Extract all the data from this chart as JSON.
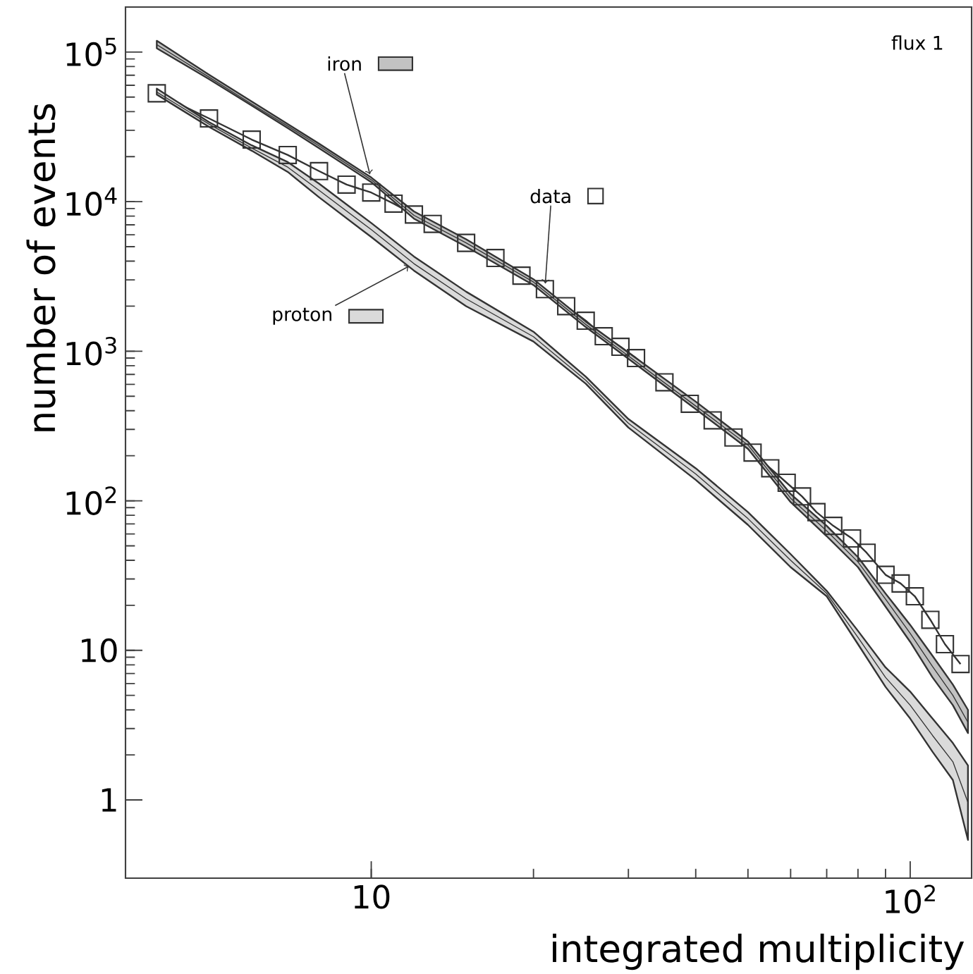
{
  "chart_data": {
    "type": "line",
    "xlabel": "integrated multiplicity",
    "ylabel": "number of events",
    "log": "xy",
    "xlim": [
      3.5,
      130
    ],
    "ylim": [
      0.3,
      200000
    ],
    "xticks": [
      10,
      {
        "value": 100,
        "label": "10$^{2}$"
      }
    ],
    "yticks": [
      1,
      10,
      {
        "value": 100,
        "label": "10$^{2}$"
      },
      {
        "value": 1000,
        "label": "10$^{3}$"
      },
      {
        "value": 10000,
        "label": "10$^{4}$"
      },
      {
        "value": 100000,
        "label": "10$^{5}$"
      }
    ],
    "x": [
      4,
      5,
      6,
      7,
      8,
      10,
      12,
      15,
      20,
      25,
      30,
      40,
      50,
      60,
      70,
      80,
      90,
      100,
      110,
      120,
      128
    ],
    "series": [
      {
        "name": "data",
        "color": "#333333",
        "marker": "square",
        "x": [
          4,
          5,
          6,
          7,
          8,
          9,
          10,
          11,
          12,
          13,
          15,
          17,
          19,
          21,
          23,
          25,
          27,
          29,
          31,
          35,
          39,
          43,
          47,
          51,
          55,
          59,
          63,
          67,
          72,
          78,
          83,
          90,
          96,
          102,
          109,
          116,
          124
        ],
        "values": [
          53000,
          36000,
          26000,
          20500,
          16000,
          13000,
          11500,
          9700,
          8200,
          7100,
          5300,
          4200,
          3200,
          2600,
          2000,
          1600,
          1260,
          1070,
          900,
          620,
          445,
          345,
          265,
          210,
          165,
          132,
          107,
          84,
          68,
          56,
          45,
          32,
          28,
          23,
          16,
          11,
          8.1
        ]
      },
      {
        "name": "iron",
        "color": "#333333",
        "marker": "none",
        "values": [
          112000,
          68000,
          45000,
          32000,
          23600,
          14000,
          8100,
          5300,
          2900,
          1510,
          930,
          430,
          236,
          104,
          63,
          39,
          22,
          13,
          7.8,
          5.0,
          3.3
        ],
        "lower": [
          106000,
          66000,
          43900,
          31000,
          22800,
          13500,
          7700,
          5000,
          2770,
          1450,
          890,
          410,
          223,
          98,
          58,
          36,
          19.6,
          11.4,
          6.6,
          4.3,
          2.8
        ],
        "upper": [
          119000,
          70600,
          46700,
          33000,
          24400,
          14500,
          8600,
          5600,
          3030,
          1580,
          980,
          460,
          249,
          111,
          68,
          42,
          24,
          14.8,
          9.2,
          5.9,
          4.0
        ]
      },
      {
        "name": "proton",
        "color": "#333333",
        "marker": "none",
        "values": [
          54000,
          33000,
          22800,
          17000,
          11900,
          6500,
          3850,
          2240,
          1250,
          640,
          330,
          151,
          76,
          40,
          24,
          12.2,
          6.6,
          4.3,
          2.7,
          1.8,
          0.96
        ],
        "lower": [
          52000,
          31600,
          21900,
          15800,
          10700,
          5800,
          3460,
          2000,
          1160,
          607,
          309,
          138,
          69,
          36,
          23,
          11,
          5.7,
          3.5,
          2.1,
          1.36,
          0.54
        ],
        "upper": [
          57000,
          34000,
          23800,
          18400,
          13200,
          7200,
          4300,
          2500,
          1350,
          676,
          352,
          165,
          84,
          44,
          25,
          13.5,
          7.7,
          5.3,
          3.5,
          2.4,
          1.7
        ]
      }
    ],
    "legend": "top left",
    "annotations": [
      "flux 1"
    ]
  }
}
